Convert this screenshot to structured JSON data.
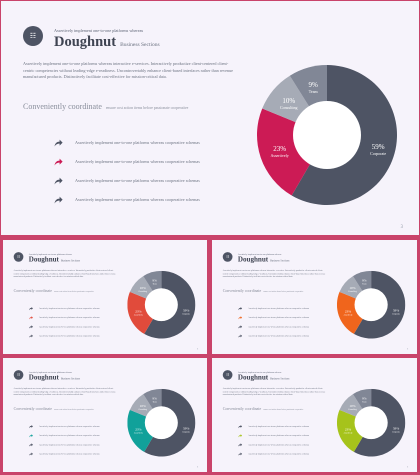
{
  "slide": {
    "logo_text": "☷",
    "kicker": "Assertively implement one-to-one platforms whereas",
    "title": "Doughnut",
    "title_sub": "Business Sections",
    "body": "Assertively implement one-to-one platforms whereas interactive e-services. Interactively productize client-centered client-centric competencies without leading-edge e-readiness. Uncontrovertably enhance client-based interfaces rather than revenue manufactured products. Distinctively facilitate cost-effective for mission-critical data.",
    "section_title": "Conveniently coordinate",
    "section_sub": "ensure cost action items before passionate cooperative",
    "list_items": [
      "Assertively implement one-to-one platforms whereas cooperative schemas",
      "Assertively implement one-to-one platforms whereas cooperative schemas",
      "Assertively implement one-to-one platforms whereas cooperative schemas",
      "Assertively implement one-to-one platforms whereas cooperative schemas"
    ],
    "page_number": "3"
  },
  "colors": {
    "frame": "#c9436a",
    "dark": "#4e5464",
    "light_gray": "#a6abb6",
    "mid_gray": "#818796",
    "arrow_gray": "#4e5464"
  },
  "variants": [
    {
      "name": "main",
      "accent": "#cc1b55"
    },
    {
      "name": "red",
      "accent": "#e14b3b"
    },
    {
      "name": "orange",
      "accent": "#f0651c"
    },
    {
      "name": "teal",
      "accent": "#11a19a"
    },
    {
      "name": "lime",
      "accent": "#a6c31b"
    }
  ],
  "chart_data": {
    "type": "pie",
    "style": "doughnut",
    "categories": [
      "Corporate",
      "Assertively",
      "Consulting",
      "Team"
    ],
    "values": [
      59,
      23,
      10,
      9
    ],
    "labels": [
      "59%",
      "23%",
      "10%",
      "9%"
    ]
  }
}
